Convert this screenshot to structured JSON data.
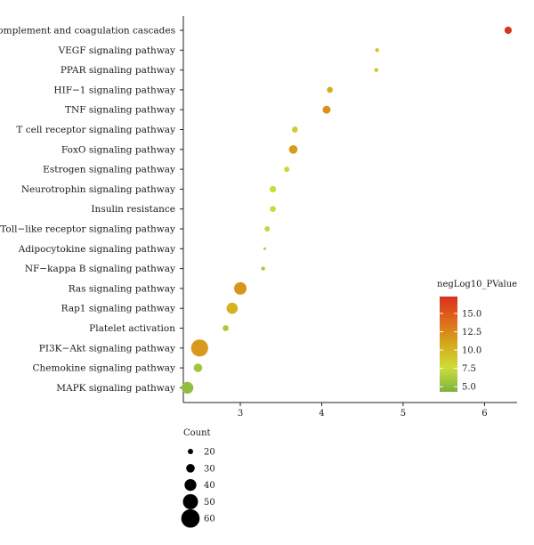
{
  "chart_data": {
    "type": "scatter",
    "title": "",
    "xlabel": "",
    "ylabel": "",
    "xlim": [
      2.3,
      6.4
    ],
    "x_ticks": [
      3,
      4,
      5,
      6
    ],
    "categories": [
      "Complement and coagulation cascades",
      "VEGF signaling pathway",
      "PPAR signaling pathway",
      "HIF−1 signaling pathway",
      "TNF signaling pathway",
      "T cell receptor signaling pathway",
      "FoxO signaling pathway",
      "Estrogen signaling pathway",
      "Neurotrophin signaling pathway",
      "Insulin resistance",
      "Toll−like receptor signaling pathway",
      "Adipocytokine signaling pathway",
      "NF−kappa B signaling pathway",
      "Ras signaling pathway",
      "Rap1 signaling pathway",
      "Platelet activation",
      "PI3K−Akt signaling pathway",
      "Chemokine signaling pathway",
      "MAPK signaling pathway"
    ],
    "points": [
      {
        "x": 6.29,
        "count": 26,
        "neglog10p": 17.0
      },
      {
        "x": 4.68,
        "count": 16,
        "neglog10p": 9.0
      },
      {
        "x": 4.67,
        "count": 16,
        "neglog10p": 9.0
      },
      {
        "x": 4.1,
        "count": 22,
        "neglog10p": 10.5
      },
      {
        "x": 4.06,
        "count": 28,
        "neglog10p": 12.0
      },
      {
        "x": 3.67,
        "count": 22,
        "neglog10p": 8.6
      },
      {
        "x": 3.65,
        "count": 30,
        "neglog10p": 11.6
      },
      {
        "x": 3.57,
        "count": 20,
        "neglog10p": 8.0
      },
      {
        "x": 3.4,
        "count": 24,
        "neglog10p": 7.6
      },
      {
        "x": 3.4,
        "count": 22,
        "neglog10p": 7.4
      },
      {
        "x": 3.33,
        "count": 20,
        "neglog10p": 7.2
      },
      {
        "x": 3.3,
        "count": 12,
        "neglog10p": 6.4
      },
      {
        "x": 3.28,
        "count": 16,
        "neglog10p": 6.4
      },
      {
        "x": 3.0,
        "count": 42,
        "neglog10p": 11.8
      },
      {
        "x": 2.9,
        "count": 38,
        "neglog10p": 10.2
      },
      {
        "x": 2.82,
        "count": 22,
        "neglog10p": 6.2
      },
      {
        "x": 2.5,
        "count": 56,
        "neglog10p": 11.6
      },
      {
        "x": 2.48,
        "count": 30,
        "neglog10p": 5.8
      },
      {
        "x": 2.35,
        "count": 40,
        "neglog10p": 5.2
      }
    ],
    "color_legend": {
      "title": "negLog10_PValue",
      "ticks": [
        5.0,
        7.5,
        10.0,
        12.5,
        15.0
      ],
      "tick_labels": [
        "5.0",
        "7.5",
        "10.0",
        "12.5",
        "15.0"
      ],
      "range": [
        4.3,
        17.3
      ],
      "colors": [
        "#7cb342",
        "#cddc39",
        "#d4aa1c",
        "#df6a1a",
        "#d7301f"
      ]
    },
    "size_legend": {
      "title": "Count",
      "values": [
        20,
        30,
        40,
        50,
        60
      ],
      "labels": [
        "20",
        "30",
        "40",
        "50",
        "60"
      ]
    },
    "grid": false
  }
}
